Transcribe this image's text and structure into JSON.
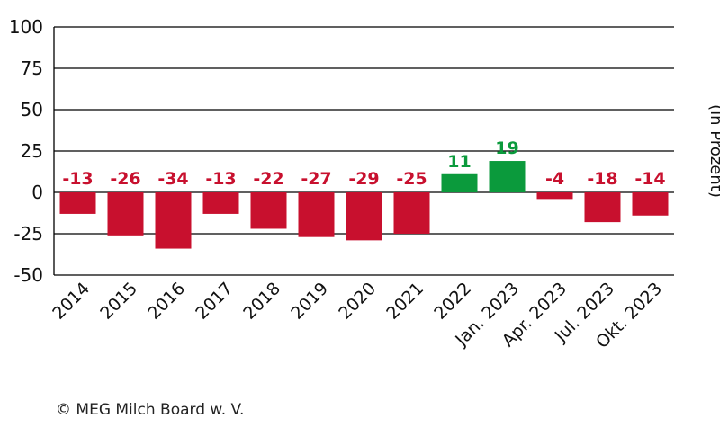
{
  "chart_data": {
    "type": "bar",
    "categories": [
      "2014",
      "2015",
      "2016",
      "2017",
      "2018",
      "2019",
      "2020",
      "2021",
      "2022",
      "Jan. 2023",
      "Apr. 2023",
      "Jul. 2023",
      "Okt. 2023"
    ],
    "values": [
      -13,
      -26,
      -34,
      -13,
      -22,
      -27,
      -29,
      -25,
      11,
      19,
      -4,
      -18,
      -14
    ],
    "data_labels": [
      "-13",
      "-26",
      "-34",
      "-13",
      "-22",
      "-27",
      "-29",
      "-25",
      "11",
      "19",
      "-4",
      "-18",
      "-14"
    ],
    "ylabel": "(in Prozent)",
    "yticks": [
      100,
      75,
      50,
      25,
      0,
      -25,
      -50
    ],
    "ylim": [
      -50,
      100
    ],
    "grid": true,
    "colors": {
      "negative": "#c8102e",
      "positive": "#0b9a3c",
      "grid": "#000000",
      "axis_text": "#111111"
    }
  },
  "credit": "© MEG Milch Board w. V."
}
